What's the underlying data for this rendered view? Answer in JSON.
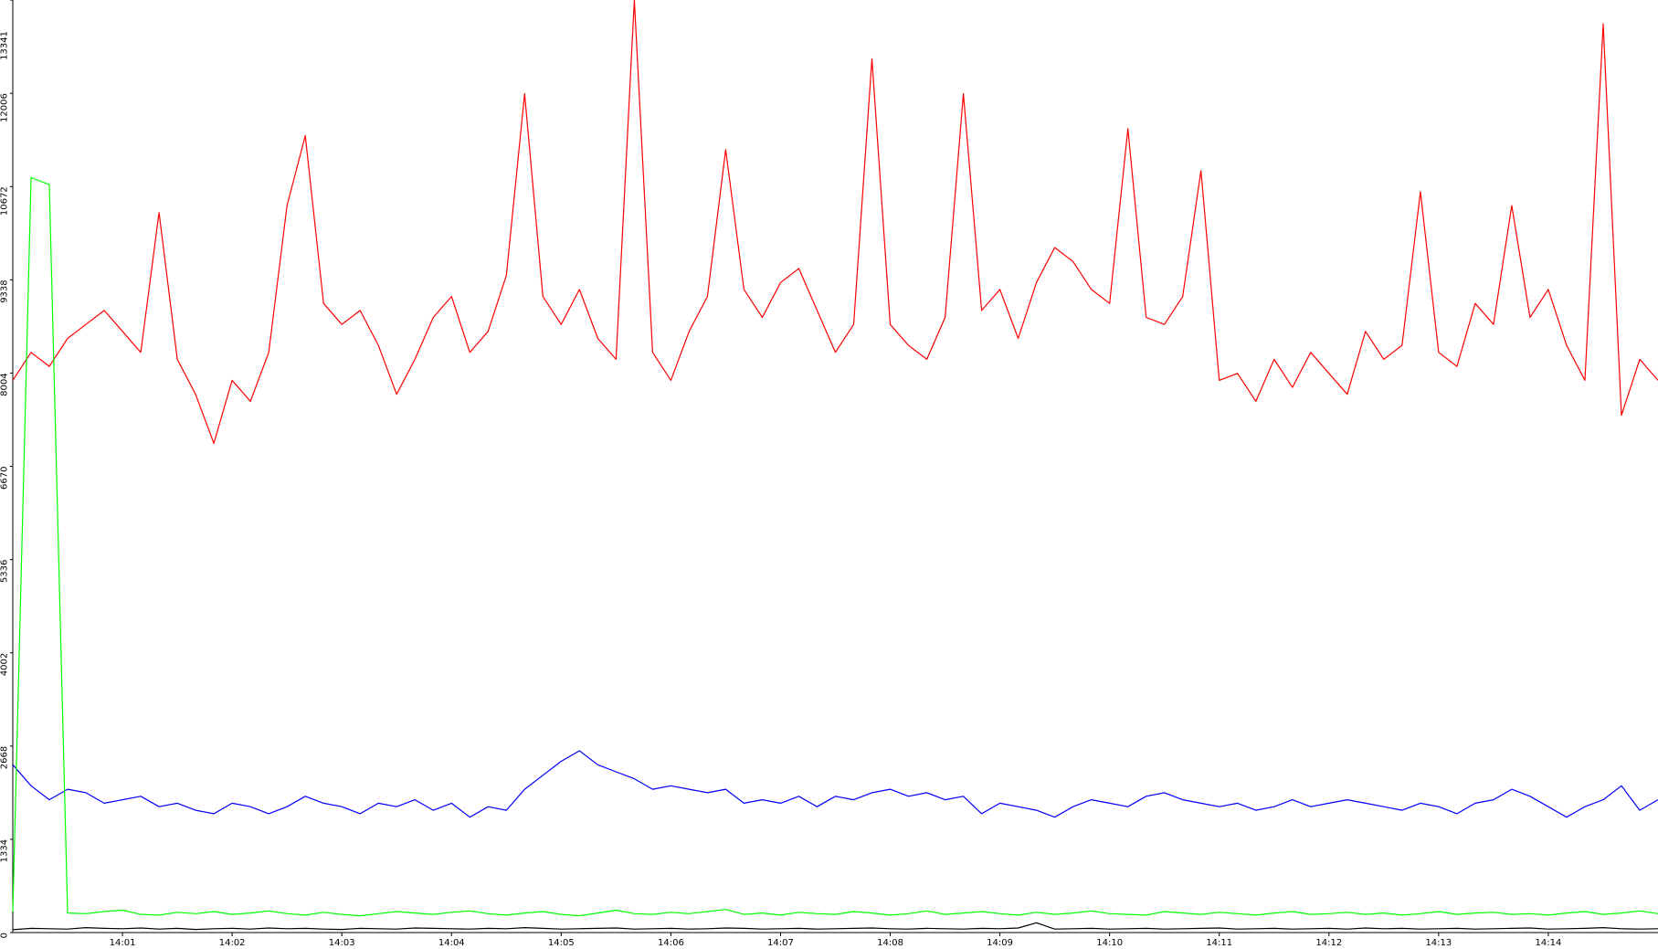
{
  "chart_data": {
    "type": "line",
    "x": [
      "14:00:00",
      "14:00:10",
      "14:00:20",
      "14:00:30",
      "14:00:40",
      "14:00:50",
      "14:01:00",
      "14:01:10",
      "14:01:20",
      "14:01:30",
      "14:01:40",
      "14:01:50",
      "14:02:00",
      "14:02:10",
      "14:02:20",
      "14:02:30",
      "14:02:40",
      "14:02:50",
      "14:03:00",
      "14:03:10",
      "14:03:20",
      "14:03:30",
      "14:03:40",
      "14:03:50",
      "14:04:00",
      "14:04:10",
      "14:04:20",
      "14:04:30",
      "14:04:40",
      "14:04:50",
      "14:05:00",
      "14:05:10",
      "14:05:20",
      "14:05:30",
      "14:05:40",
      "14:05:50",
      "14:06:00",
      "14:06:10",
      "14:06:20",
      "14:06:30",
      "14:06:40",
      "14:06:50",
      "14:07:00",
      "14:07:10",
      "14:07:20",
      "14:07:30",
      "14:07:40",
      "14:07:50",
      "14:08:00",
      "14:08:10",
      "14:08:20",
      "14:08:30",
      "14:08:40",
      "14:08:50",
      "14:09:00",
      "14:09:10",
      "14:09:20",
      "14:09:30",
      "14:09:40",
      "14:09:50",
      "14:10:00",
      "14:10:10",
      "14:10:20",
      "14:10:30",
      "14:10:40",
      "14:10:50",
      "14:11:00",
      "14:11:10",
      "14:11:20",
      "14:11:30",
      "14:11:40",
      "14:11:50",
      "14:12:00",
      "14:12:10",
      "14:12:20",
      "14:12:30",
      "14:12:40",
      "14:12:50",
      "14:13:00",
      "14:13:10",
      "14:13:20",
      "14:13:30",
      "14:13:40",
      "14:13:50",
      "14:14:00",
      "14:14:10",
      "14:14:20",
      "14:14:30",
      "14:14:40",
      "14:14:50",
      "14:15:00"
    ],
    "series": [
      {
        "color": "#ff0000",
        "values": [
          7900,
          8300,
          8100,
          8500,
          8700,
          8900,
          8600,
          8300,
          10300,
          8200,
          7700,
          7000,
          7900,
          7600,
          8300,
          10400,
          11400,
          9000,
          8700,
          8900,
          8400,
          7700,
          8200,
          8800,
          9100,
          8300,
          8600,
          9400,
          12000,
          9100,
          8700,
          9200,
          8500,
          8200,
          13341,
          8300,
          7900,
          8600,
          9100,
          11200,
          9200,
          8800,
          9300,
          9500,
          8900,
          8300,
          8700,
          12500,
          8700,
          8400,
          8200,
          8800,
          12000,
          8900,
          9200,
          8500,
          9300,
          9800,
          9600,
          9200,
          9000,
          11500,
          8800,
          8700,
          9100,
          10900,
          7900,
          8000,
          7600,
          8200,
          7800,
          8300,
          8000,
          7700,
          8600,
          8200,
          8400,
          10600,
          8300,
          8100,
          9000,
          8700,
          10400,
          8800,
          9200,
          8400,
          7900,
          13000,
          7400,
          8200,
          7900
        ]
      },
      {
        "color": "#0000ff",
        "values": [
          2400,
          2100,
          1900,
          2050,
          2000,
          1850,
          1900,
          1950,
          1800,
          1850,
          1750,
          1700,
          1850,
          1800,
          1700,
          1800,
          1950,
          1850,
          1800,
          1700,
          1850,
          1800,
          1900,
          1750,
          1850,
          1650,
          1800,
          1750,
          2050,
          2250,
          2450,
          2600,
          2400,
          2300,
          2200,
          2050,
          2100,
          2050,
          2000,
          2050,
          1850,
          1900,
          1850,
          1950,
          1800,
          1950,
          1900,
          2000,
          2050,
          1950,
          2000,
          1900,
          1950,
          1700,
          1850,
          1800,
          1750,
          1650,
          1800,
          1900,
          1850,
          1800,
          1950,
          2000,
          1900,
          1850,
          1800,
          1850,
          1750,
          1800,
          1900,
          1800,
          1850,
          1900,
          1850,
          1800,
          1750,
          1850,
          1800,
          1700,
          1850,
          1900,
          2050,
          1950,
          1800,
          1650,
          1800,
          1900,
          2100,
          1750,
          1900
        ]
      },
      {
        "color": "#00ff00",
        "values": [
          300,
          10800,
          10700,
          280,
          270,
          300,
          320,
          260,
          250,
          290,
          270,
          300,
          260,
          280,
          310,
          270,
          250,
          290,
          260,
          240,
          270,
          300,
          280,
          260,
          290,
          310,
          270,
          250,
          280,
          300,
          260,
          240,
          280,
          320,
          270,
          260,
          290,
          270,
          300,
          330,
          260,
          280,
          250,
          290,
          270,
          260,
          300,
          280,
          250,
          270,
          310,
          260,
          280,
          300,
          270,
          250,
          290,
          260,
          280,
          310,
          270,
          260,
          250,
          300,
          280,
          260,
          290,
          270,
          250,
          280,
          300,
          260,
          270,
          290,
          260,
          280,
          250,
          270,
          300,
          260,
          280,
          290,
          260,
          270,
          250,
          280,
          300,
          260,
          280,
          310,
          270
        ]
      },
      {
        "color": "#000000",
        "values": [
          40,
          60,
          55,
          50,
          70,
          60,
          55,
          65,
          50,
          60,
          45,
          55,
          60,
          50,
          65,
          55,
          60,
          50,
          45,
          60,
          55,
          50,
          65,
          60,
          55,
          50,
          60,
          55,
          70,
          60,
          50,
          55,
          60,
          65,
          50,
          55,
          60,
          50,
          55,
          65,
          60,
          50,
          55,
          60,
          50,
          55,
          60,
          65,
          55,
          50,
          60,
          55,
          50,
          60,
          55,
          65,
          140,
          50,
          55,
          60,
          50,
          55,
          60,
          50,
          55,
          60,
          65,
          50,
          55,
          60,
          50,
          55,
          60,
          50,
          65,
          55,
          60,
          50,
          55,
          60,
          50,
          55,
          60,
          65,
          50,
          55,
          60,
          70,
          55,
          50,
          55
        ]
      }
    ],
    "xlim": [
      "14:00:00",
      "14:15:00"
    ],
    "xticks": [
      "14:01",
      "14:02",
      "14:03",
      "14:04",
      "14:05",
      "14:06",
      "14:07",
      "14:08",
      "14:09",
      "14:10",
      "14:11",
      "14:12",
      "14:13",
      "14:14"
    ],
    "ylim": [
      0,
      13341
    ],
    "yticks": [
      0,
      1334,
      2668,
      4002,
      5336,
      6670,
      8004,
      9338,
      10672,
      12006,
      13341
    ],
    "grid": false
  }
}
